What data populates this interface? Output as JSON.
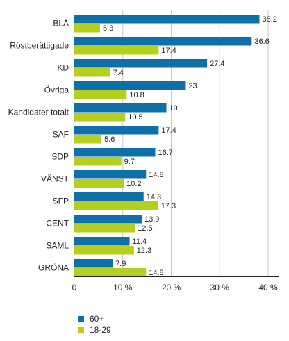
{
  "chart_data": {
    "type": "bar",
    "orientation": "horizontal",
    "categories": [
      "BLÅ",
      "Röstberättigade",
      "KD",
      "Övriga",
      "Kandidater totalt",
      "SAF",
      "SDP",
      "VÄNST",
      "SFP",
      "CENT",
      "SAML",
      "GRÖNA"
    ],
    "series": [
      {
        "name": "60+",
        "color": "#0f6fa8",
        "values": [
          38.2,
          36.6,
          27.4,
          23,
          19,
          17.4,
          16.7,
          14.8,
          14.3,
          13.9,
          11.4,
          7.9
        ]
      },
      {
        "name": "18-29",
        "color": "#b6cf1f",
        "values": [
          5.3,
          17.4,
          7.4,
          10.8,
          10.5,
          5.6,
          9.7,
          10.2,
          17.3,
          12.5,
          12.3,
          14.8
        ]
      }
    ],
    "xlim": [
      0,
      42
    ],
    "ticks": [
      0,
      10,
      20,
      30,
      40
    ],
    "tick_labels": [
      "0",
      "10 %",
      "20 %",
      "30 %",
      "40 %"
    ],
    "grid": true,
    "legend_position": "bottom-left"
  }
}
